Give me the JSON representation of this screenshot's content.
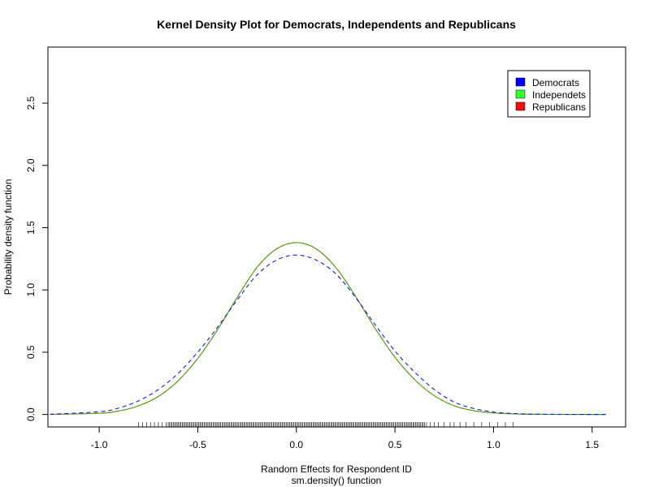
{
  "chart_data": {
    "type": "line",
    "title": "Kernel Density Plot for Democrats, Independents and Republicans",
    "xlabel": "Random Effects for Respondent ID",
    "xlabel_sub": "sm.density() function",
    "ylabel": "Probability density function",
    "xlim": [
      -1.26,
      1.67
    ],
    "ylim": [
      -0.1,
      2.95
    ],
    "xticks": [
      -1.0,
      -0.5,
      0.0,
      0.5,
      1.0,
      1.5
    ],
    "xtick_labels": [
      "-1.0",
      "-0.5",
      "0.0",
      "0.5",
      "1.0",
      "1.5"
    ],
    "yticks": [
      0.0,
      0.5,
      1.0,
      1.5,
      2.0,
      2.5
    ],
    "ytick_labels": [
      "0.0",
      "0.5",
      "1.0",
      "1.5",
      "2.0",
      "2.5"
    ],
    "grid": false,
    "legend_position": "top-right",
    "series": [
      {
        "name": "Democrats",
        "color": "#0000ff",
        "linestyle": "dashed",
        "x": [
          -1.25,
          -1.0,
          -0.9,
          -0.8,
          -0.7,
          -0.6,
          -0.5,
          -0.4,
          -0.3,
          -0.2,
          -0.1,
          0.0,
          0.1,
          0.2,
          0.3,
          0.4,
          0.5,
          0.6,
          0.7,
          0.8,
          0.9,
          1.0,
          1.1,
          1.2,
          1.4,
          1.57
        ],
        "y": [
          0.002,
          0.022,
          0.052,
          0.11,
          0.2,
          0.33,
          0.5,
          0.7,
          0.92,
          1.12,
          1.24,
          1.28,
          1.24,
          1.13,
          0.94,
          0.72,
          0.51,
          0.34,
          0.2,
          0.1,
          0.048,
          0.02,
          0.008,
          0.003,
          0.001,
          0.0
        ]
      },
      {
        "name": "Independets",
        "color": "#00cc00",
        "linestyle": "dashed",
        "x": [
          -1.25,
          -1.0,
          -0.9,
          -0.8,
          -0.7,
          -0.6,
          -0.5,
          -0.4,
          -0.3,
          -0.2,
          -0.1,
          0.0,
          0.1,
          0.2,
          0.3,
          0.4,
          0.5,
          0.6,
          0.7,
          0.8,
          0.9,
          1.0,
          1.1,
          1.2,
          1.4,
          1.57
        ],
        "y": [
          0.001,
          0.01,
          0.028,
          0.07,
          0.145,
          0.27,
          0.45,
          0.68,
          0.94,
          1.18,
          1.33,
          1.38,
          1.33,
          1.18,
          0.95,
          0.69,
          0.46,
          0.28,
          0.15,
          0.07,
          0.03,
          0.012,
          0.005,
          0.002,
          0.0,
          0.0
        ]
      },
      {
        "name": "Republicans",
        "color": "#ff0000",
        "linestyle": "solid",
        "x": [
          -1.25,
          -1.0,
          -0.9,
          -0.8,
          -0.7,
          -0.6,
          -0.5,
          -0.4,
          -0.3,
          -0.2,
          -0.1,
          0.0,
          0.1,
          0.2,
          0.3,
          0.4,
          0.5,
          0.6,
          0.7,
          0.8,
          0.9,
          1.0,
          1.1,
          1.2,
          1.4,
          1.57
        ],
        "y": [
          0.001,
          0.01,
          0.028,
          0.07,
          0.145,
          0.27,
          0.45,
          0.68,
          0.94,
          1.18,
          1.33,
          1.38,
          1.33,
          1.18,
          0.95,
          0.69,
          0.46,
          0.28,
          0.15,
          0.07,
          0.03,
          0.012,
          0.005,
          0.002,
          0.0,
          0.0
        ]
      }
    ],
    "overlay_series": [
      {
        "name": "",
        "color": "#a08020",
        "linestyle": "solid",
        "x": [
          -1.25,
          -1.0,
          -0.9,
          -0.8,
          -0.7,
          -0.6,
          -0.5,
          -0.4,
          -0.3,
          -0.2,
          -0.1,
          0.0,
          0.1,
          0.2,
          0.3,
          0.4,
          0.5,
          0.6,
          0.7,
          0.8,
          0.9,
          1.0,
          1.1,
          1.2,
          1.4,
          1.57
        ],
        "y": [
          0.001,
          0.01,
          0.028,
          0.07,
          0.145,
          0.27,
          0.45,
          0.68,
          0.94,
          1.18,
          1.33,
          1.38,
          1.33,
          1.18,
          0.95,
          0.69,
          0.46,
          0.28,
          0.15,
          0.07,
          0.03,
          0.012,
          0.005,
          0.002,
          0.0,
          0.0
        ]
      }
    ],
    "rug": {
      "dense_range": [
        -0.65,
        0.65
      ],
      "sparse_x": [
        -0.8,
        -0.78,
        -0.76,
        -0.74,
        -0.72,
        -0.7,
        -0.68,
        -0.66,
        0.66,
        0.68,
        0.7,
        0.72,
        0.75,
        0.78,
        0.8,
        0.83,
        0.86,
        0.9,
        0.94,
        0.98,
        1.02,
        1.06,
        1.1
      ]
    }
  }
}
